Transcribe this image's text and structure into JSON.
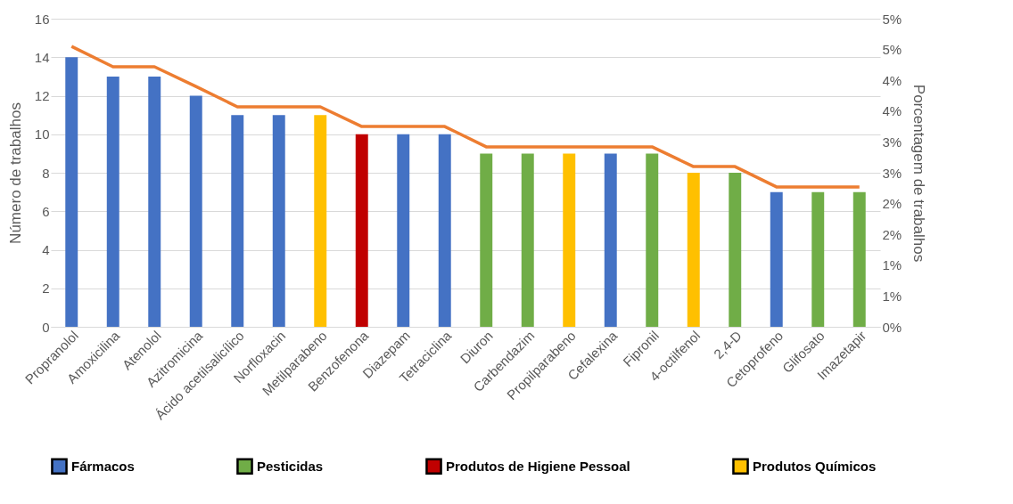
{
  "chart_data": {
    "type": "bar",
    "categories": [
      "Propranolol",
      "Amoxicilina",
      "Atenolol",
      "Azitromicina",
      "Ácido acetilsalicílico",
      "Norfloxacin",
      "Metilparabeno",
      "Benzofenona",
      "Diazepam",
      "Tetraciclina",
      "Diuron",
      "Carbendazim",
      "Propilparabeno",
      "Cefalexina",
      "Fipronil",
      "4-octilfenol",
      "2,4-D",
      "Cetoprofeno",
      "Glifosato",
      "Imazetapir"
    ],
    "series": [
      {
        "name": "Fármacos",
        "color": "#4472c4",
        "values": [
          14,
          13,
          13,
          12,
          11,
          11,
          null,
          null,
          10,
          10,
          null,
          null,
          null,
          9,
          null,
          null,
          null,
          7,
          null,
          null
        ]
      },
      {
        "name": "Pesticidas",
        "color": "#70ad47",
        "values": [
          null,
          null,
          null,
          null,
          null,
          null,
          null,
          null,
          null,
          null,
          9,
          9,
          null,
          null,
          9,
          null,
          8,
          null,
          7,
          7
        ]
      },
      {
        "name": "Produtos de Higiene Pessoal",
        "color": "#c00000",
        "values": [
          null,
          null,
          null,
          null,
          null,
          null,
          null,
          10,
          null,
          null,
          null,
          null,
          null,
          null,
          null,
          null,
          null,
          null,
          null,
          null
        ]
      },
      {
        "name": "Produtos Químicos",
        "color": "#ffc000",
        "values": [
          null,
          null,
          null,
          null,
          null,
          null,
          11,
          null,
          null,
          null,
          null,
          null,
          9,
          null,
          null,
          8,
          null,
          null,
          null,
          null
        ]
      },
      {
        "type": "line",
        "axis": "y2",
        "color": "#ed7d31",
        "values": [
          4.55,
          4.22,
          4.22,
          3.9,
          3.57,
          3.57,
          3.57,
          3.25,
          3.25,
          3.25,
          2.92,
          2.92,
          2.92,
          2.92,
          2.92,
          2.6,
          2.6,
          2.27,
          2.27,
          2.27
        ]
      }
    ],
    "ylabel": "Número de trabalhos",
    "y2label": "Porcentagem de trabalhos",
    "ylim": [
      0,
      16
    ],
    "yticks": [
      0,
      2,
      4,
      6,
      8,
      10,
      12,
      14,
      16
    ],
    "y2lim": [
      0,
      5
    ],
    "y2ticks": [
      {
        "value": 0,
        "label": "0%"
      },
      {
        "value": 0.5,
        "label": "1%"
      },
      {
        "value": 1,
        "label": "1%"
      },
      {
        "value": 1.5,
        "label": "2%"
      },
      {
        "value": 2,
        "label": "2%"
      },
      {
        "value": 2.5,
        "label": "3%"
      },
      {
        "value": 3,
        "label": "3%"
      },
      {
        "value": 3.5,
        "label": "4%"
      },
      {
        "value": 4,
        "label": "4%"
      },
      {
        "value": 4.5,
        "label": "5%"
      },
      {
        "value": 5,
        "label": "5%"
      }
    ],
    "grid": "y",
    "legend": "bottom"
  }
}
